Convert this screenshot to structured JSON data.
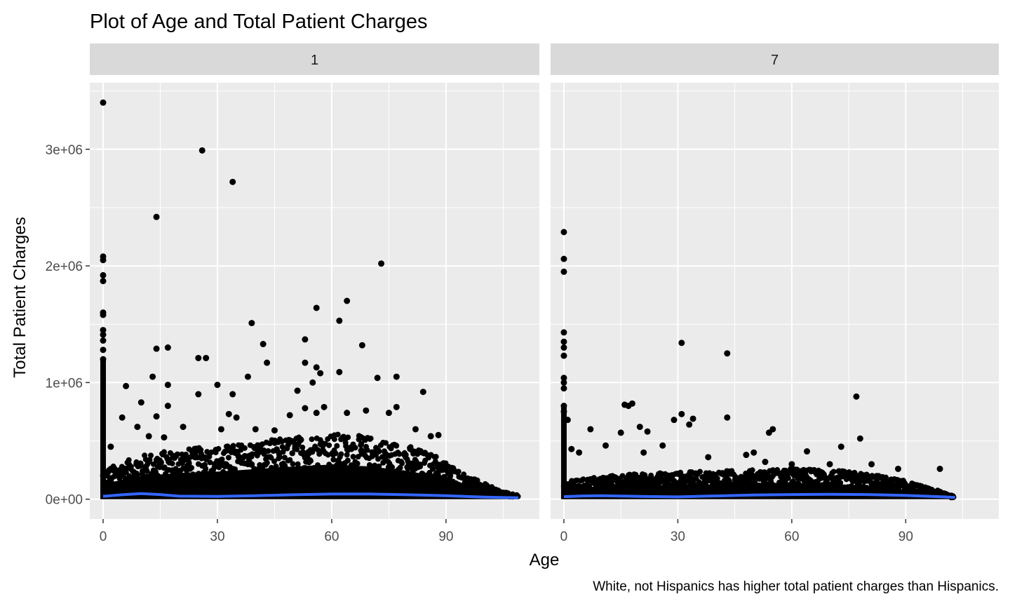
{
  "chart_data": {
    "type": "scatter",
    "title": "Plot of Age and Total Patient Charges",
    "subtitle": "",
    "xlabel": "Age",
    "ylabel": "Total Patient Charges",
    "caption": "White, not Hispanics has higher total patient charges than Hispanics.",
    "xlim": [
      -3.5,
      114.5
    ],
    "ylim": [
      -170000,
      3570000
    ],
    "x_ticks": [
      0,
      30,
      60,
      90
    ],
    "x_tick_labels": [
      "0",
      "30",
      "60",
      "90"
    ],
    "y_ticks": [
      0,
      1000000,
      2000000,
      3000000
    ],
    "y_tick_labels": [
      "0e+00",
      "1e+06",
      "2e+06",
      "3e+06"
    ],
    "grid": true,
    "colors": {
      "panel_background": "#ebebeb",
      "strip_background": "#d9d9d9",
      "grid_line": "#ffffff",
      "point": "#000000",
      "smooth_line": "#3366ff"
    },
    "panels": [
      {
        "label": "1",
        "outliers": [
          [
            0,
            3400000
          ],
          [
            26,
            2990000
          ],
          [
            34,
            2720000
          ],
          [
            14,
            2420000
          ],
          [
            73,
            2020000
          ],
          [
            0,
            2080000
          ],
          [
            0,
            2050000
          ],
          [
            0,
            1920000
          ],
          [
            0,
            1870000
          ],
          [
            0,
            1600000
          ],
          [
            0,
            1580000
          ],
          [
            0,
            1450000
          ],
          [
            0,
            1410000
          ],
          [
            0,
            1360000
          ],
          [
            0,
            1280000
          ],
          [
            0,
            1200000
          ],
          [
            56,
            1640000
          ],
          [
            64,
            1700000
          ],
          [
            62,
            1530000
          ],
          [
            39,
            1510000
          ],
          [
            42,
            1330000
          ],
          [
            68,
            1320000
          ],
          [
            53,
            1370000
          ],
          [
            14,
            1290000
          ],
          [
            17,
            1300000
          ],
          [
            25,
            1210000
          ],
          [
            27,
            1210000
          ],
          [
            43,
            1170000
          ],
          [
            53,
            1170000
          ],
          [
            56,
            1130000
          ],
          [
            57,
            1080000
          ],
          [
            62,
            1090000
          ],
          [
            72,
            1040000
          ],
          [
            77,
            1050000
          ],
          [
            38,
            1050000
          ],
          [
            30,
            980000
          ],
          [
            17,
            980000
          ],
          [
            13,
            1050000
          ],
          [
            6,
            970000
          ],
          [
            25,
            900000
          ],
          [
            34,
            900000
          ],
          [
            55,
            1000000
          ],
          [
            51,
            930000
          ],
          [
            84,
            920000
          ],
          [
            58,
            790000
          ],
          [
            77,
            790000
          ],
          [
            10,
            830000
          ],
          [
            17,
            800000
          ],
          [
            53,
            780000
          ],
          [
            69,
            760000
          ],
          [
            56,
            740000
          ],
          [
            64,
            740000
          ],
          [
            75,
            740000
          ],
          [
            33,
            730000
          ],
          [
            35,
            700000
          ],
          [
            49,
            720000
          ],
          [
            5,
            700000
          ],
          [
            14,
            710000
          ],
          [
            2,
            450000
          ],
          [
            82,
            600000
          ],
          [
            88,
            550000
          ],
          [
            86,
            540000
          ],
          [
            21,
            620000
          ],
          [
            9,
            620000
          ],
          [
            12,
            540000
          ],
          [
            16,
            530000
          ],
          [
            31,
            600000
          ],
          [
            40,
            600000
          ],
          [
            45,
            590000
          ]
        ],
        "band": [
          [
            0,
            240000
          ],
          [
            10,
            360000
          ],
          [
            20,
            410000
          ],
          [
            30,
            430000
          ],
          [
            40,
            470000
          ],
          [
            50,
            510000
          ],
          [
            60,
            540000
          ],
          [
            70,
            510000
          ],
          [
            80,
            440000
          ],
          [
            88,
            350000
          ],
          [
            95,
            200000
          ],
          [
            100,
            130000
          ],
          [
            105,
            60000
          ],
          [
            109,
            30000
          ]
        ],
        "smooth": [
          [
            0,
            25000
          ],
          [
            5,
            38000
          ],
          [
            10,
            48000
          ],
          [
            15,
            40000
          ],
          [
            20,
            26000
          ],
          [
            30,
            24000
          ],
          [
            40,
            30000
          ],
          [
            50,
            38000
          ],
          [
            60,
            44000
          ],
          [
            70,
            44000
          ],
          [
            80,
            38000
          ],
          [
            90,
            30000
          ],
          [
            100,
            18000
          ],
          [
            109,
            12000
          ]
        ]
      },
      {
        "label": "7",
        "outliers": [
          [
            0,
            2290000
          ],
          [
            0,
            2060000
          ],
          [
            0,
            1950000
          ],
          [
            0,
            1430000
          ],
          [
            0,
            1350000
          ],
          [
            0,
            1300000
          ],
          [
            0,
            1230000
          ],
          [
            0,
            1040000
          ],
          [
            0,
            1000000
          ],
          [
            0,
            950000
          ],
          [
            0,
            800000
          ],
          [
            0,
            750000
          ],
          [
            31,
            1340000
          ],
          [
            43,
            1250000
          ],
          [
            77,
            880000
          ],
          [
            16,
            810000
          ],
          [
            17,
            800000
          ],
          [
            18,
            820000
          ],
          [
            31,
            730000
          ],
          [
            34,
            690000
          ],
          [
            43,
            700000
          ],
          [
            33,
            640000
          ],
          [
            29,
            680000
          ],
          [
            55,
            600000
          ],
          [
            54,
            570000
          ],
          [
            7,
            600000
          ],
          [
            15,
            570000
          ],
          [
            20,
            620000
          ],
          [
            22,
            580000
          ],
          [
            11,
            460000
          ],
          [
            1,
            680000
          ],
          [
            2,
            430000
          ],
          [
            4,
            400000
          ],
          [
            26,
            460000
          ],
          [
            78,
            520000
          ],
          [
            73,
            450000
          ],
          [
            64,
            410000
          ],
          [
            50,
            400000
          ],
          [
            48,
            380000
          ],
          [
            38,
            360000
          ],
          [
            21,
            400000
          ],
          [
            99,
            260000
          ],
          [
            102,
            30000
          ],
          [
            70,
            300000
          ],
          [
            81,
            300000
          ],
          [
            88,
            260000
          ],
          [
            60,
            300000
          ],
          [
            53,
            320000
          ]
        ],
        "band": [
          [
            0,
            140000
          ],
          [
            10,
            190000
          ],
          [
            20,
            210000
          ],
          [
            30,
            220000
          ],
          [
            40,
            230000
          ],
          [
            50,
            240000
          ],
          [
            60,
            250000
          ],
          [
            70,
            240000
          ],
          [
            80,
            210000
          ],
          [
            90,
            150000
          ],
          [
            95,
            100000
          ],
          [
            100,
            60000
          ],
          [
            103,
            20000
          ]
        ],
        "smooth": [
          [
            0,
            22000
          ],
          [
            5,
            28000
          ],
          [
            10,
            30000
          ],
          [
            20,
            24000
          ],
          [
            30,
            20000
          ],
          [
            40,
            28000
          ],
          [
            50,
            36000
          ],
          [
            60,
            40000
          ],
          [
            70,
            42000
          ],
          [
            80,
            40000
          ],
          [
            90,
            32000
          ],
          [
            100,
            20000
          ],
          [
            103,
            15000
          ]
        ]
      }
    ]
  }
}
